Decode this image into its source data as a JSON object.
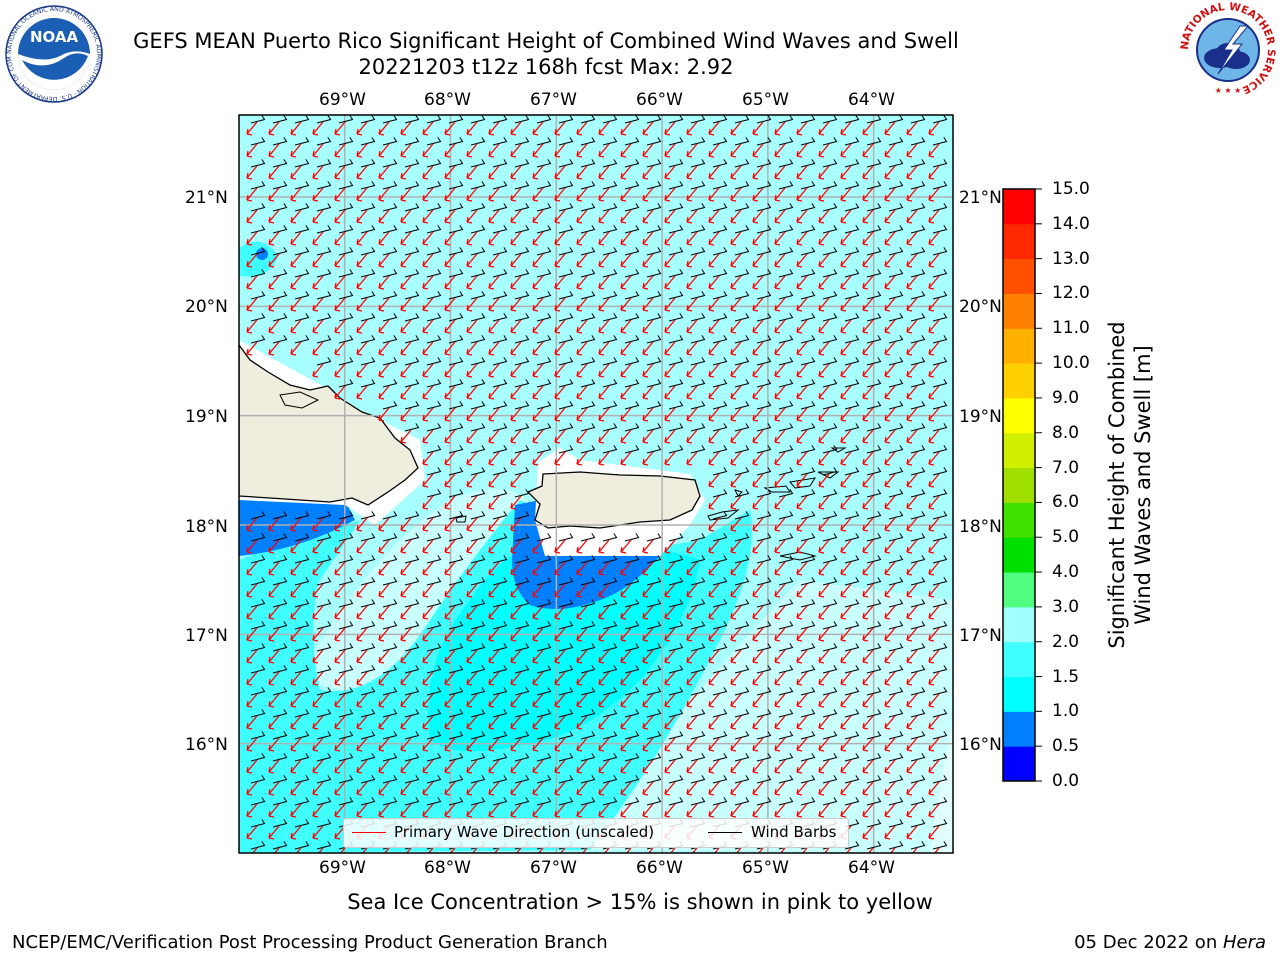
{
  "title": {
    "line1": "GEFS MEAN Puerto Rico Significant Height of Combined Wind Waves and Swell",
    "line2": "20221203 t12z 168h fcst   Max: 2.92"
  },
  "logos": {
    "noaa_text": "NOAA",
    "noaa_ring": "NATIONAL OCEANIC AND ATMOSPHERIC ADMINISTRATION · U.S. DEPARTMENT OF COMMERCE",
    "nws_ring": "NATIONAL WEATHER SERVICE"
  },
  "map": {
    "lon_labels": [
      "69°W",
      "68°W",
      "67°W",
      "66°W",
      "65°W",
      "64°W"
    ],
    "lat_labels": [
      "21°N",
      "20°N",
      "19°N",
      "18°N",
      "17°N",
      "16°N"
    ],
    "lon_range": [
      -70.0,
      -63.25
    ],
    "lat_range": [
      15.0,
      21.75
    ],
    "wind_direction_from": "east-northeast",
    "wave_direction_toward": "southwest",
    "colors": {
      "land": "#efedde",
      "coast": "#000000",
      "grid": "#b0b0b0",
      "wind_barb": "#000000",
      "wave_arrow": "#ff0000"
    }
  },
  "legend": {
    "wave_label": "Primary Wave Direction (unscaled)",
    "barb_label": "Wind Barbs"
  },
  "colorbar": {
    "label_line1": "Significant Height of Combined",
    "label_line2": "Wind Waves and Swell [m]",
    "levels": [
      "0.0",
      "0.5",
      "1.0",
      "1.5",
      "2.0",
      "3.0",
      "4.0",
      "5.0",
      "6.0",
      "7.0",
      "8.0",
      "9.0",
      "10.0",
      "11.0",
      "12.0",
      "13.0",
      "14.0",
      "15.0"
    ],
    "colors": [
      "#0000ff",
      "#0080ff",
      "#00ffff",
      "#40ffff",
      "#a0ffff",
      "#50ff80",
      "#00e000",
      "#40e000",
      "#a0e000",
      "#d0f000",
      "#ffff00",
      "#ffd000",
      "#ffb000",
      "#ff8000",
      "#ff5000",
      "#ff2800",
      "#ff0000"
    ]
  },
  "note": "Sea Ice Concentration > 15% is shown in pink to yellow",
  "footer": {
    "left": "NCEP/EMC/Verification Post Processing Product Generation Branch",
    "right_prefix": "05 Dec 2022 on ",
    "right_host": "Hera"
  }
}
